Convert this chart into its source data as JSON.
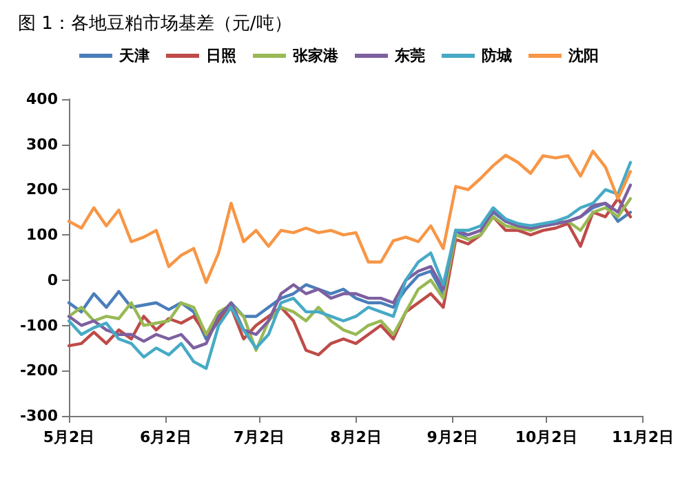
{
  "chart_data": {
    "type": "line",
    "title": "图 1：各地豆粕市场基差（元/吨）",
    "x": [
      "--05-02",
      "--05-06",
      "--05-10",
      "--05-14",
      "--05-18",
      "--05-22",
      "--05-26",
      "--05-30",
      "--06-03",
      "--06-07",
      "--06-11",
      "--06-15",
      "--06-19",
      "--06-23",
      "--06-27",
      "--07-01",
      "--07-05",
      "--07-09",
      "--07-13",
      "--07-17",
      "--07-21",
      "--07-25",
      "--07-29",
      "--08-02",
      "--08-06",
      "--08-10",
      "--08-14",
      "--08-18",
      "--08-22",
      "--08-26",
      "--08-30",
      "--09-03",
      "--09-07",
      "--09-11",
      "--09-15",
      "--09-19",
      "--09-23",
      "--09-27",
      "--10-01",
      "--10-05",
      "--10-09",
      "--10-13",
      "--10-17",
      "--10-21",
      "--10-25",
      "--10-29"
    ],
    "series": [
      {
        "name": "天津",
        "color": "#4a7ebb",
        "values": [
          -50,
          -70,
          -30,
          -60,
          -25,
          -60,
          -55,
          -50,
          -65,
          -50,
          -70,
          -130,
          -90,
          -50,
          -80,
          -80,
          -60,
          -40,
          -30,
          -10,
          -20,
          -30,
          -20,
          -40,
          -50,
          -50,
          -60,
          -20,
          10,
          20,
          -30,
          110,
          90,
          100,
          150,
          130,
          120,
          120,
          120,
          125,
          130,
          140,
          160,
          170,
          130,
          150
        ]
      },
      {
        "name": "日照",
        "color": "#be4b48",
        "values": [
          -145,
          -140,
          -115,
          -140,
          -110,
          -130,
          -80,
          -110,
          -85,
          -95,
          -80,
          -120,
          -90,
          -60,
          -130,
          -100,
          -80,
          -60,
          -90,
          -155,
          -165,
          -140,
          -130,
          -140,
          -120,
          -100,
          -130,
          -70,
          -50,
          -30,
          -60,
          90,
          80,
          100,
          140,
          110,
          110,
          100,
          110,
          115,
          125,
          75,
          150,
          140,
          180,
          140
        ]
      },
      {
        "name": "张家港",
        "color": "#98b954",
        "values": [
          -80,
          -60,
          -90,
          -80,
          -85,
          -50,
          -100,
          -95,
          -90,
          -50,
          -60,
          -120,
          -70,
          -55,
          -80,
          -155,
          -90,
          -60,
          -70,
          -90,
          -60,
          -90,
          -110,
          -120,
          -100,
          -90,
          -120,
          -70,
          -20,
          0,
          -40,
          100,
          90,
          100,
          140,
          120,
          115,
          110,
          120,
          125,
          130,
          110,
          150,
          160,
          140,
          180
        ]
      },
      {
        "name": "东莞",
        "color": "#7d60a0",
        "values": [
          -80,
          -100,
          -90,
          -110,
          -120,
          -120,
          -135,
          -120,
          -130,
          -120,
          -150,
          -140,
          -80,
          -50,
          -110,
          -120,
          -90,
          -30,
          -10,
          -30,
          -20,
          -40,
          -30,
          -30,
          -40,
          -40,
          -50,
          0,
          20,
          30,
          -20,
          110,
          100,
          110,
          155,
          130,
          120,
          115,
          120,
          125,
          130,
          140,
          165,
          170,
          150,
          210
        ]
      },
      {
        "name": "防城",
        "color": "#46aac5",
        "values": [
          -90,
          -120,
          -105,
          -95,
          -130,
          -140,
          -170,
          -150,
          -165,
          -140,
          -180,
          -195,
          -100,
          -60,
          -110,
          -150,
          -120,
          -50,
          -40,
          -70,
          -70,
          -80,
          -90,
          -80,
          -60,
          -70,
          -80,
          0,
          40,
          60,
          -10,
          110,
          110,
          120,
          160,
          135,
          125,
          120,
          125,
          130,
          140,
          160,
          170,
          200,
          190,
          260
        ]
      },
      {
        "name": "沈阳",
        "color": "#f79646",
        "values": [
          130,
          115,
          160,
          120,
          155,
          85,
          95,
          110,
          30,
          55,
          70,
          -5,
          60,
          170,
          85,
          110,
          75,
          110,
          105,
          115,
          105,
          110,
          100,
          105,
          40,
          40,
          87,
          95,
          85,
          120,
          70,
          207,
          200,
          225,
          253,
          276,
          260,
          236,
          275,
          270,
          275,
          230,
          285,
          250,
          180,
          240
        ]
      }
    ],
    "xlim": [
      "--05-02",
      "--11-02"
    ],
    "xticks": [
      {
        "value": "--05-02",
        "label": "5月2日"
      },
      {
        "value": "--06-02",
        "label": "6月2日"
      },
      {
        "value": "--07-02",
        "label": "7月2日"
      },
      {
        "value": "--08-02",
        "label": "8月2日"
      },
      {
        "value": "--09-02",
        "label": "9月2日"
      },
      {
        "value": "--10-02",
        "label": "10月2日"
      },
      {
        "value": "--11-02",
        "label": "11月2日"
      }
    ],
    "ylim": [
      -300,
      400
    ],
    "yticks": [
      -300,
      -200,
      -100,
      0,
      100,
      200,
      300,
      400
    ],
    "grid": false,
    "legend": "top",
    "marker": "none",
    "line_style": "solid"
  }
}
